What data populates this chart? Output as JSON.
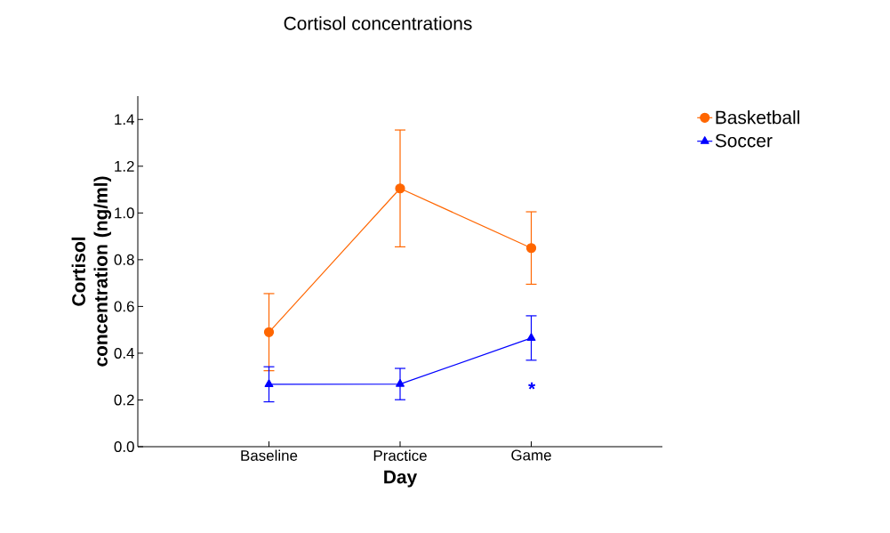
{
  "chart_data": {
    "type": "line",
    "title": "Cortisol concentrations",
    "xlabel": "Day",
    "ylabel": "Cortisol concentration (ng/ml)",
    "categories": [
      "Baseline",
      "Practice",
      "Game"
    ],
    "series": [
      {
        "name": "Basketball",
        "color": "#ff6600",
        "marker": "circle",
        "values": [
          0.49,
          1.105,
          0.85
        ],
        "errors": [
          0.165,
          0.25,
          0.155
        ]
      },
      {
        "name": "Soccer",
        "color": "#0000ff",
        "marker": "triangle",
        "values": [
          0.267,
          0.268,
          0.465
        ],
        "errors": [
          0.075,
          0.067,
          0.095
        ]
      }
    ],
    "ylim": [
      0,
      1.5
    ],
    "yticks": [
      {
        "value": 0,
        "label": "0.0"
      },
      0.2,
      0.4,
      0.6,
      0.8,
      {
        "value": 1,
        "label": "1.0"
      },
      1.2,
      1.4
    ],
    "annotations": [
      "*"
    ],
    "legend": "top right",
    "grid": false,
    "line_style": "solid"
  }
}
